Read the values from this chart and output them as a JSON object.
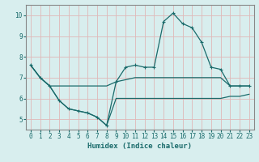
{
  "xlabel": "Humidex (Indice chaleur)",
  "xlim": [
    -0.5,
    23.5
  ],
  "ylim": [
    4.5,
    10.5
  ],
  "yticks": [
    5,
    6,
    7,
    8,
    9,
    10
  ],
  "xticks": [
    0,
    1,
    2,
    3,
    4,
    5,
    6,
    7,
    8,
    9,
    10,
    11,
    12,
    13,
    14,
    15,
    16,
    17,
    18,
    19,
    20,
    21,
    22,
    23
  ],
  "bg_color": "#d8eeee",
  "grid_color": "#e0b8b8",
  "line_color": "#1a6b6b",
  "spine_color": "#888888",
  "line1": [
    7.6,
    7.0,
    6.6,
    5.9,
    5.5,
    5.4,
    5.3,
    5.1,
    4.7,
    6.8,
    7.5,
    7.6,
    7.5,
    7.5,
    9.7,
    10.1,
    9.6,
    9.4,
    8.7,
    7.5,
    7.4,
    6.6,
    6.6,
    6.6
  ],
  "line2": [
    7.6,
    7.0,
    6.6,
    6.6,
    6.6,
    6.6,
    6.6,
    6.6,
    6.6,
    6.8,
    6.9,
    7.0,
    7.0,
    7.0,
    7.0,
    7.0,
    7.0,
    7.0,
    7.0,
    7.0,
    7.0,
    6.6,
    6.6,
    6.6
  ],
  "line3": [
    7.6,
    7.0,
    6.6,
    5.9,
    5.5,
    5.4,
    5.3,
    5.1,
    4.7,
    6.0,
    6.0,
    6.0,
    6.0,
    6.0,
    6.0,
    6.0,
    6.0,
    6.0,
    6.0,
    6.0,
    6.0,
    6.1,
    6.1,
    6.2
  ]
}
